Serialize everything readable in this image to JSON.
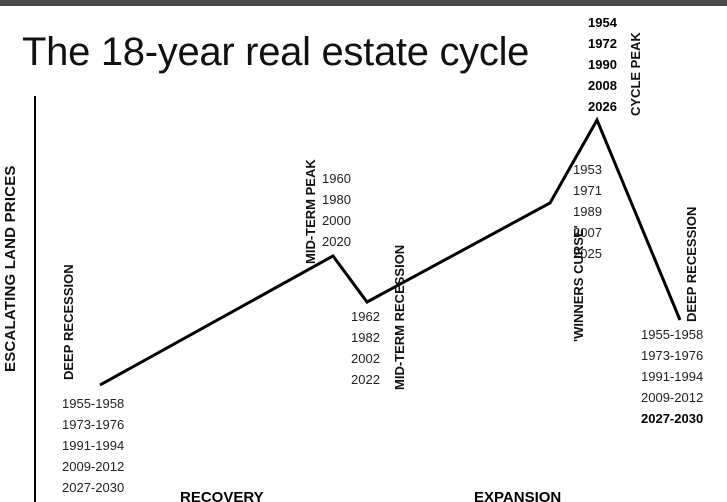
{
  "title": "The 18-year real estate cycle",
  "y_axis_label": "ESCALATING LAND PRICES",
  "points": {
    "deep_recession_start": {
      "label_lines": [
        "DEEP",
        "RECESSION"
      ],
      "years": [
        "1955-1958",
        "1973-1976",
        "1991-1994",
        "2009-2012",
        "2027-2030"
      ]
    },
    "mid_term_peak": {
      "label": "MID-TERM PEAK",
      "years": [
        "1960",
        "1980",
        "2000",
        "2020"
      ]
    },
    "mid_term_recession": {
      "label_lines": [
        "MID-TERM",
        "RECESSION"
      ],
      "years": [
        "1962",
        "1982",
        "2002",
        "2022"
      ]
    },
    "winners_curse": {
      "label_lines": [
        "'WINNERS",
        "CURSE'"
      ],
      "years": [
        "1953",
        "1971",
        "1989",
        "2007",
        "2025"
      ]
    },
    "cycle_peak": {
      "label": "CYCLE PEAK",
      "years": [
        "1954",
        "1972",
        "1990",
        "2008",
        "2026"
      ]
    },
    "deep_recession_end": {
      "label": "DEEP RECESSION",
      "years": [
        "1955-1958",
        "1973-1976",
        "1991-1994",
        "2009-2012",
        "2027-2030"
      ]
    }
  },
  "phases": {
    "recovery": "RECOVERY",
    "expansion": "EXPANSION"
  }
}
